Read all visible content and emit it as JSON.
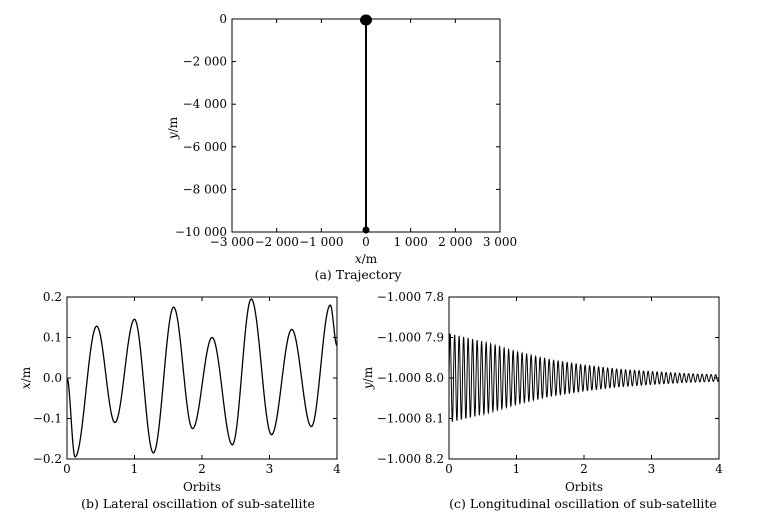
{
  "chart_data": [
    {
      "type": "line",
      "caption": "(a) Trajectory",
      "xlabel_var": "x",
      "xlabel_unit": "/m",
      "ylabel_var": "y",
      "ylabel_unit": "/m",
      "xlim": [
        -3000,
        3000
      ],
      "ylim": [
        -10000,
        0
      ],
      "x_ticks": [
        -3000,
        -2000,
        -1000,
        0,
        1000,
        2000,
        3000
      ],
      "x_tick_labels": [
        "−3 000",
        "−2 000",
        "−1 000",
        "0",
        "1 000",
        "2 000",
        "3 000"
      ],
      "y_ticks": [
        0,
        -2000,
        -4000,
        -6000,
        -8000,
        -10000
      ],
      "y_tick_labels": [
        "0",
        "−2 000",
        "−4 000",
        "−6 000",
        "−8 000",
        "−10 000"
      ],
      "series": [
        {
          "x": [
            0,
            0
          ],
          "y": [
            0,
            -10000
          ],
          "start_marker": [
            0,
            0
          ],
          "end_marker": [
            0,
            -10000
          ]
        }
      ]
    },
    {
      "type": "line",
      "caption": "(b) Lateral oscillation of sub-satellite",
      "xlabel": "Orbits",
      "ylabel_var": "x",
      "ylabel_unit": "/m",
      "xlim": [
        0,
        4
      ],
      "ylim": [
        -0.2,
        0.2
      ],
      "x_ticks": [
        0,
        1,
        2,
        3,
        4
      ],
      "x_tick_labels": [
        "0",
        "1",
        "2",
        "3",
        "4"
      ],
      "y_ticks": [
        0.2,
        0.1,
        0.0,
        -0.1,
        -0.2
      ],
      "y_tick_labels": [
        "0.2",
        "0.1",
        "0.0",
        "−0.1",
        "−0.2"
      ],
      "series": [
        {
          "x": [
            0.0,
            0.12,
            0.44,
            0.71,
            1.0,
            1.28,
            1.58,
            1.86,
            2.15,
            2.45,
            2.73,
            3.03,
            3.33,
            3.62,
            3.9,
            4.0
          ],
          "y": [
            0.0,
            -0.195,
            0.128,
            -0.11,
            0.145,
            -0.185,
            0.175,
            -0.125,
            0.1,
            -0.165,
            0.195,
            -0.14,
            0.12,
            -0.12,
            0.18,
            0.08
          ]
        }
      ]
    },
    {
      "type": "line",
      "caption": "(c) Longitudinal oscillation of sub-satellite",
      "xlabel": "Orbits",
      "ylabel_var": "y",
      "ylabel_unit": "/m",
      "xlim": [
        0,
        4
      ],
      "ylim": [
        -10008.2,
        -10007.8
      ],
      "x_ticks": [
        0,
        1,
        2,
        3,
        4
      ],
      "x_tick_labels": [
        "0",
        "1",
        "2",
        "3",
        "4"
      ],
      "y_ticks": [
        -10007.8,
        -10007.9,
        -10008.0,
        -10008.1,
        -10008.2
      ],
      "y_tick_labels": [
        "−1.000 7.8",
        "−1.000 7.9",
        "−1.000 8.0",
        "−1.000 8.1",
        "−1.000 8.2"
      ],
      "series": [
        {
          "center": -10008.0,
          "cycles_per_orbit": 15,
          "envelope_x": [
            0.0,
            0.5,
            1.0,
            1.5,
            2.0,
            2.5,
            3.0,
            3.5,
            4.0
          ],
          "envelope_amplitude": [
            0.11,
            0.09,
            0.065,
            0.045,
            0.032,
            0.022,
            0.016,
            0.011,
            0.008
          ]
        }
      ]
    }
  ]
}
